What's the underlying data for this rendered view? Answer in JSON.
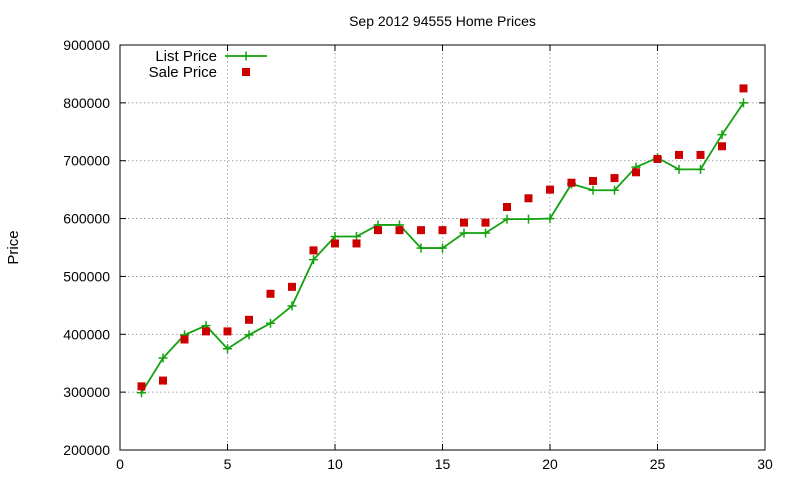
{
  "chart_data": {
    "type": "line",
    "title": "Sep 2012 94555 Home Prices",
    "xlabel": "",
    "ylabel": "Price",
    "xlim": [
      0,
      30
    ],
    "ylim": [
      200000,
      900000
    ],
    "xticks": [
      0,
      5,
      10,
      15,
      20,
      25,
      30
    ],
    "yticks": [
      200000,
      300000,
      400000,
      500000,
      600000,
      700000,
      800000,
      900000
    ],
    "xtick_labels": [
      "0",
      "5",
      "10",
      "15",
      "20",
      "25",
      "30"
    ],
    "ytick_labels": [
      "200000",
      "300000",
      "400000",
      "500000",
      "600000",
      "700000",
      "800000",
      "900000"
    ],
    "grid": true,
    "legend_position": "top-left",
    "series": [
      {
        "name": "List Price",
        "style": "line-with-plus-markers",
        "color": "#13a10e",
        "x": [
          1,
          2,
          3,
          4,
          5,
          6,
          7,
          8,
          9,
          10,
          11,
          12,
          13,
          14,
          15,
          16,
          17,
          18,
          19,
          20,
          21,
          22,
          23,
          24,
          25,
          26,
          27,
          28,
          29
        ],
        "values": [
          299000,
          359000,
          399000,
          415000,
          375000,
          399000,
          419000,
          449000,
          529000,
          569000,
          569000,
          589000,
          589000,
          549000,
          549000,
          575000,
          575000,
          599000,
          599000,
          600000,
          660000,
          649000,
          649000,
          689000,
          705000,
          685000,
          685000,
          745000,
          800000
        ]
      },
      {
        "name": "Sale Price",
        "style": "square-markers",
        "color": "#cc0000",
        "x": [
          1,
          2,
          3,
          4,
          5,
          6,
          7,
          8,
          9,
          10,
          11,
          12,
          13,
          14,
          15,
          16,
          17,
          18,
          19,
          20,
          21,
          22,
          23,
          24,
          25,
          26,
          27,
          28,
          29
        ],
        "values": [
          310000,
          320000,
          391000,
          405000,
          405000,
          425000,
          470000,
          482000,
          545000,
          557000,
          557000,
          580000,
          580000,
          580000,
          580000,
          593000,
          593000,
          620000,
          635000,
          650000,
          662000,
          665000,
          670000,
          680000,
          703000,
          710000,
          710000,
          725000,
          825000
        ]
      }
    ]
  }
}
